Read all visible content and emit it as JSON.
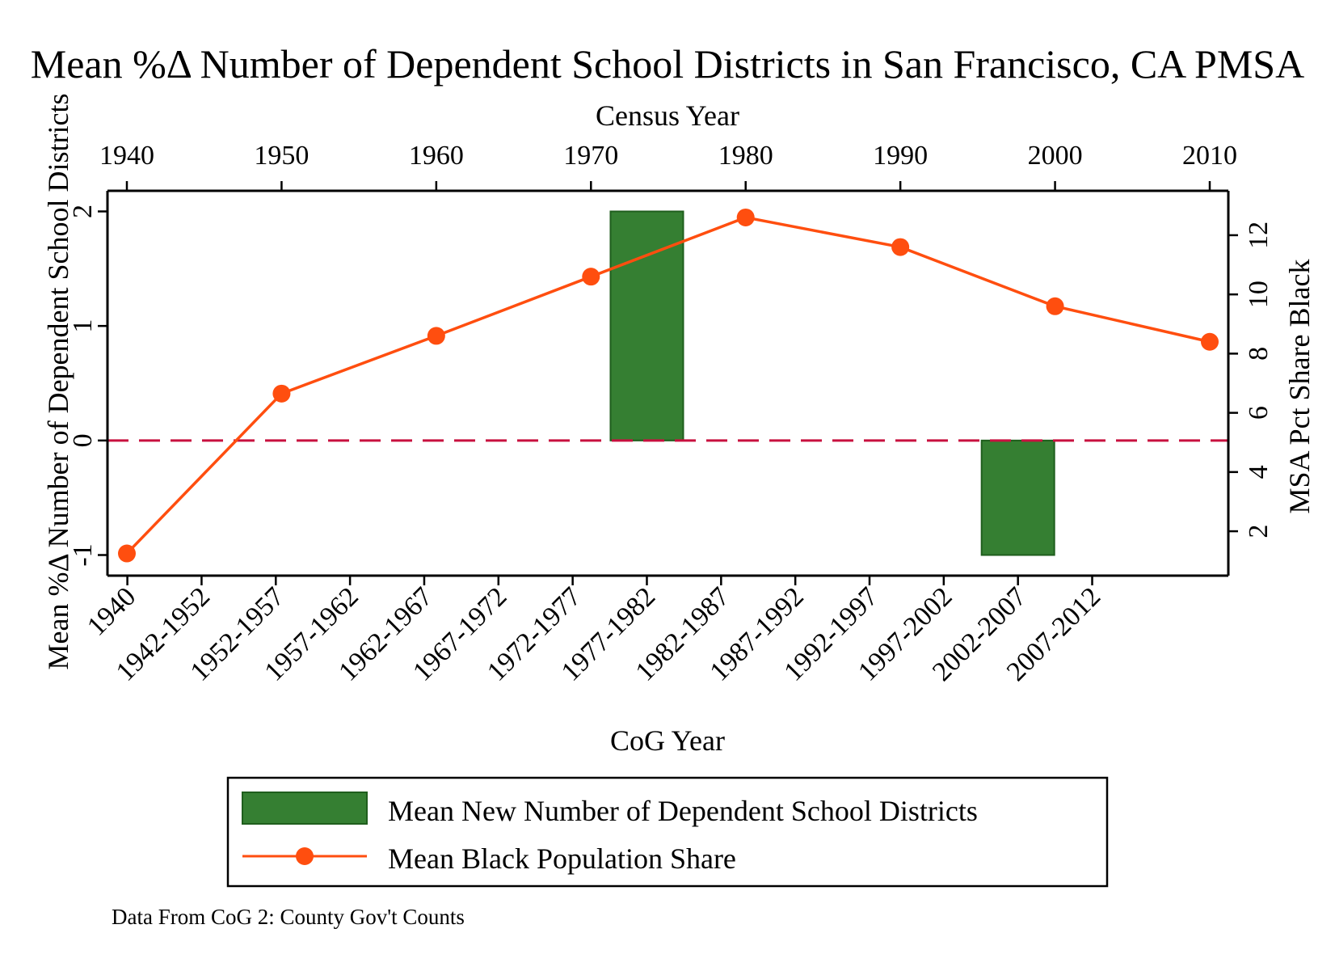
{
  "chart_data": {
    "type": "bar+line",
    "title": "Mean %Δ Number of Dependent School Districts in San Francisco, CA PMSA",
    "top_xlabel": "Census Year",
    "top_ticks": [
      "1940",
      "1950",
      "1960",
      "1970",
      "1980",
      "1990",
      "2000",
      "2010"
    ],
    "xlabel": "CoG Year",
    "categories": [
      "1940",
      "1942-1952",
      "1952-1957",
      "1957-1962",
      "1962-1967",
      "1967-1972",
      "1972-1977",
      "1977-1982",
      "1982-1987",
      "1987-1992",
      "1992-1997",
      "1997-2002",
      "2002-2007",
      "2007-2012"
    ],
    "ylabel_left": "Mean %Δ Number of Dependent School Districts",
    "ylim_left": [
      -1.18,
      2.18
    ],
    "yticks_left": [
      "-1",
      "0",
      "1",
      "2"
    ],
    "ylabel_right": "MSA Pct Share Black",
    "ylim_right": [
      0.5,
      13.5
    ],
    "yticks_right": [
      "2",
      "4",
      "6",
      "8",
      "10",
      "12"
    ],
    "reference_line_y": 0,
    "bars": {
      "name": "Mean New Number of Dependent School Districts",
      "color": "#357f32",
      "values": [
        null,
        null,
        null,
        null,
        null,
        null,
        null,
        2,
        null,
        null,
        null,
        null,
        -1,
        null
      ]
    },
    "line": {
      "name": "Mean Black Population Share",
      "color": "#ff4e0f",
      "x": [
        "1940",
        "1950",
        "1960",
        "1970",
        "1980",
        "1990",
        "2000",
        "2010"
      ],
      "values": [
        1.25,
        6.65,
        8.6,
        10.6,
        12.6,
        11.6,
        9.6,
        8.4
      ]
    },
    "legend_position": "bottom",
    "note": "Data From CoG 2: County Gov't Counts"
  }
}
